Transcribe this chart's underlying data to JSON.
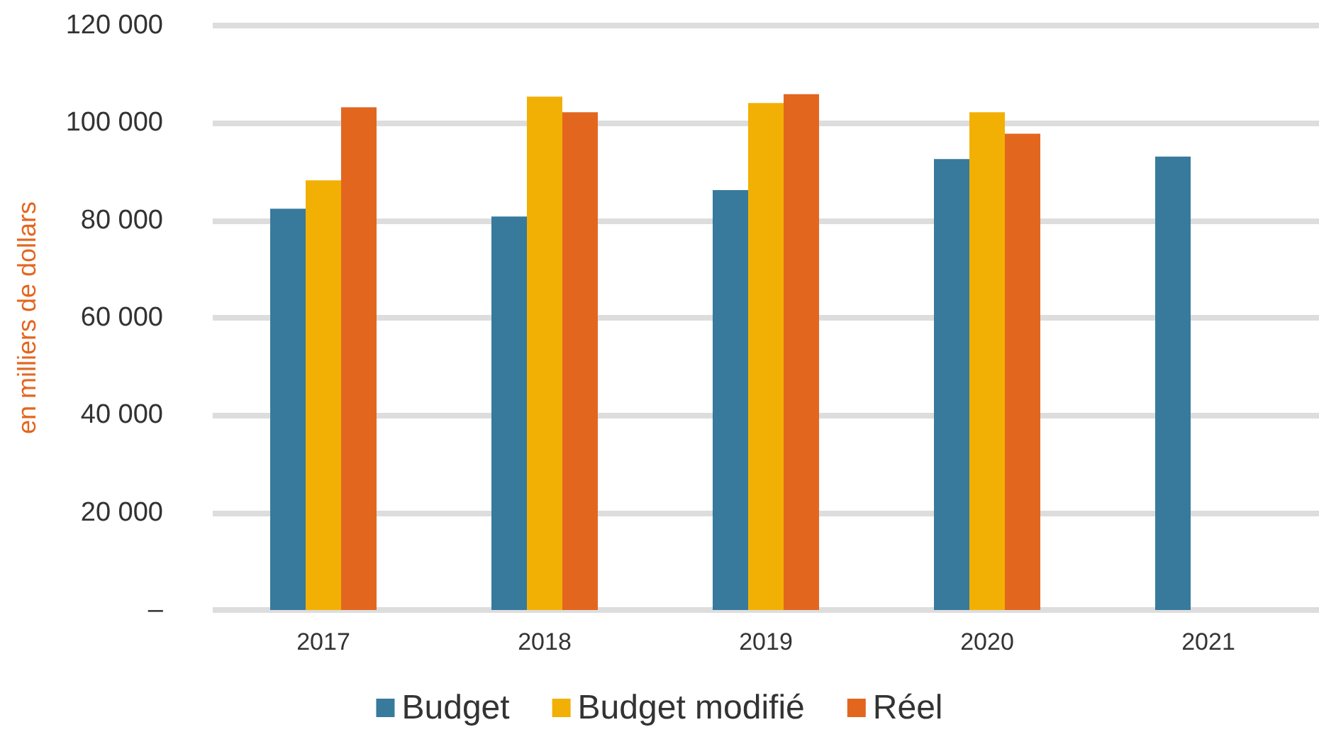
{
  "chart_data": {
    "type": "bar",
    "ylabel": "en milliers de dollars",
    "categories": [
      "2017",
      "2018",
      "2019",
      "2020",
      "2021"
    ],
    "series": [
      {
        "name": "Budget",
        "color": "#377a9c",
        "values": [
          82400,
          80800,
          86200,
          92600,
          93100
        ]
      },
      {
        "name": "Budget modifié",
        "color": "#f2b005",
        "values": [
          88200,
          105400,
          104100,
          102200,
          null
        ]
      },
      {
        "name": "Réel",
        "color": "#e3661f",
        "values": [
          103200,
          102200,
          105900,
          97800,
          null
        ]
      }
    ],
    "ylim": [
      0,
      120000
    ],
    "yticks": [
      {
        "value": 0,
        "label": "–"
      },
      {
        "value": 20000,
        "label": "20 000"
      },
      {
        "value": 40000,
        "label": "40 000"
      },
      {
        "value": 60000,
        "label": "60 000"
      },
      {
        "value": 80000,
        "label": "80 000"
      },
      {
        "value": 100000,
        "label": "100 000"
      },
      {
        "value": 120000,
        "label": "120 000"
      }
    ],
    "grid": "y",
    "legend": "bottom"
  }
}
